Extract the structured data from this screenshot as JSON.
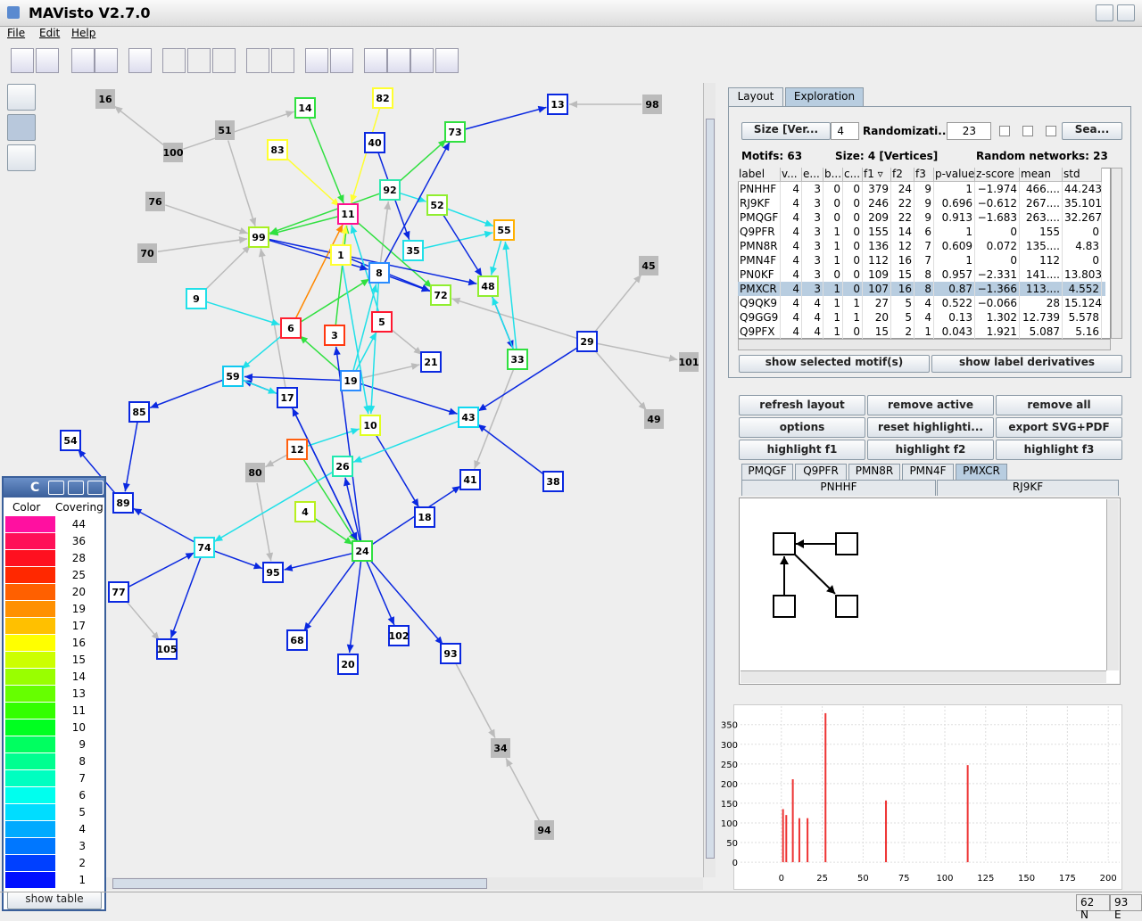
{
  "window": {
    "title": "MAVisto V2.7.0"
  },
  "menu": [
    "File",
    "Edit",
    "Help"
  ],
  "graph": {
    "nodes": [
      "16",
      "51",
      "100",
      "76",
      "70",
      "14",
      "82",
      "83",
      "40",
      "73",
      "13",
      "98",
      "92",
      "11",
      "52",
      "55",
      "99",
      "1",
      "35",
      "8",
      "72",
      "48",
      "45",
      "9",
      "6",
      "3",
      "5",
      "29",
      "33",
      "101",
      "21",
      "59",
      "19",
      "17",
      "85",
      "43",
      "49",
      "10",
      "54",
      "12",
      "26",
      "80",
      "41",
      "38",
      "4",
      "18",
      "89",
      "74",
      "24",
      "95",
      "77",
      "68",
      "102",
      "20",
      "93",
      "105",
      "34",
      "94"
    ]
  },
  "legend_window": {
    "title": "C",
    "headers": [
      "Color",
      "Covering"
    ],
    "rows": [
      {
        "color": "#ff10a0",
        "covering": 44
      },
      {
        "color": "#ff1058",
        "covering": 36
      },
      {
        "color": "#ff1020",
        "covering": 28
      },
      {
        "color": "#ff2800",
        "covering": 25
      },
      {
        "color": "#ff6000",
        "covering": 20
      },
      {
        "color": "#ff9000",
        "covering": 19
      },
      {
        "color": "#ffc000",
        "covering": 17
      },
      {
        "color": "#ffff00",
        "covering": 16
      },
      {
        "color": "#ccff00",
        "covering": 15
      },
      {
        "color": "#99ff00",
        "covering": 14
      },
      {
        "color": "#66ff00",
        "covering": 13
      },
      {
        "color": "#33ff00",
        "covering": 11
      },
      {
        "color": "#00ff20",
        "covering": 10
      },
      {
        "color": "#00ff60",
        "covering": 9
      },
      {
        "color": "#00ff90",
        "covering": 8
      },
      {
        "color": "#00ffc0",
        "covering": 7
      },
      {
        "color": "#00ffee",
        "covering": 6
      },
      {
        "color": "#00ddff",
        "covering": 5
      },
      {
        "color": "#00aaff",
        "covering": 4
      },
      {
        "color": "#0077ff",
        "covering": 3
      },
      {
        "color": "#0040ff",
        "covering": 2
      },
      {
        "color": "#0010ff",
        "covering": 1
      }
    ],
    "button": "show table"
  },
  "tabs": [
    "Layout",
    "Exploration"
  ],
  "controls": {
    "size": "Size [Ver...",
    "size_value": "4",
    "randomization": "Randomizati...",
    "randomization_value": "23",
    "search": "Sea..."
  },
  "summary": [
    "Motifs: 63",
    "Size: 4 [Vertices]",
    "Random networks: 23"
  ],
  "motif_table": {
    "headers": [
      "label",
      "v...",
      "e...",
      "b...",
      "c...",
      "f1 ▿",
      "f2",
      "f3",
      "p-value",
      "z-score",
      "mean",
      "std"
    ],
    "rows": [
      [
        "PNHHF",
        "4",
        "3",
        "0",
        "0",
        "379",
        "24",
        "9",
        "1",
        "−1.974",
        "466....",
        "44.243"
      ],
      [
        "RJ9KF",
        "4",
        "3",
        "0",
        "0",
        "246",
        "22",
        "9",
        "0.696",
        "−0.612",
        "267....",
        "35.101"
      ],
      [
        "PMQGF",
        "4",
        "3",
        "0",
        "0",
        "209",
        "22",
        "9",
        "0.913",
        "−1.683",
        "263....",
        "32.267"
      ],
      [
        "Q9PFR",
        "4",
        "3",
        "1",
        "0",
        "155",
        "14",
        "6",
        "1",
        "0",
        "155",
        "0"
      ],
      [
        "PMN8R",
        "4",
        "3",
        "1",
        "0",
        "136",
        "12",
        "7",
        "0.609",
        "0.072",
        "135....",
        "4.83"
      ],
      [
        "PMN4F",
        "4",
        "3",
        "1",
        "0",
        "112",
        "16",
        "7",
        "1",
        "0",
        "112",
        "0"
      ],
      [
        "PN0KF",
        "4",
        "3",
        "0",
        "0",
        "109",
        "15",
        "8",
        "0.957",
        "−2.331",
        "141....",
        "13.803"
      ],
      [
        "PMXCR",
        "4",
        "3",
        "1",
        "0",
        "107",
        "16",
        "8",
        "0.87",
        "−1.366",
        "113....",
        "4.552"
      ],
      [
        "Q9QK9",
        "4",
        "4",
        "1",
        "1",
        "27",
        "5",
        "4",
        "0.522",
        "−0.066",
        "28",
        "15.124"
      ],
      [
        "Q9GG9",
        "4",
        "4",
        "1",
        "1",
        "20",
        "5",
        "4",
        "0.13",
        "1.302",
        "12.739",
        "5.578"
      ],
      [
        "Q9PFX",
        "4",
        "4",
        "1",
        "0",
        "15",
        "2",
        "1",
        "0.043",
        "1.921",
        "5.087",
        "5.16"
      ]
    ],
    "selected_row": 7
  },
  "motif_buttons": [
    "show selected motif(s)",
    "show label derivatives"
  ],
  "action_buttons": [
    "refresh layout",
    "remove active",
    "remove all",
    "options",
    "reset highlighti...",
    "export SVG+PDF",
    "highlight f1",
    "highlight f2",
    "highlight f3"
  ],
  "motif_tabs": [
    [
      "PMQGF",
      "Q9PFR",
      "PMN8R",
      "PMN4F",
      "PMXCR"
    ],
    [
      "PNHHF",
      "RJ9KF"
    ]
  ],
  "histogram": {
    "x": [
      1,
      3,
      7,
      11,
      16,
      27,
      64,
      114
    ],
    "values": [
      135,
      120,
      211,
      112,
      112,
      379,
      157,
      247
    ],
    "color": "#ee3333",
    "xlim": [
      -25,
      207
    ],
    "ylim": [
      -18,
      397
    ],
    "xticks": [
      0,
      25,
      50,
      75,
      100,
      125,
      150,
      175,
      200
    ],
    "yticks": [
      0,
      50,
      100,
      150,
      200,
      250,
      300,
      350
    ]
  },
  "status": [
    "62 N",
    "93 E"
  ]
}
